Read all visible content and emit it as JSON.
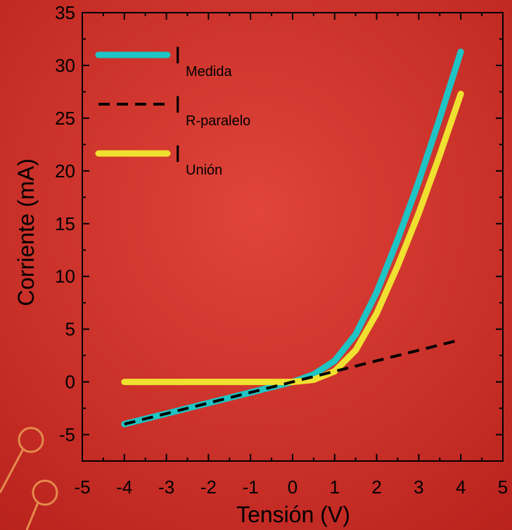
{
  "chart_data": {
    "type": "line",
    "x_label": "Tensión (V)",
    "y_label": "Corriente (mA)",
    "x": [
      -4,
      -3,
      -2,
      -1,
      0,
      0.5,
      1,
      1.5,
      2,
      2.5,
      3,
      3.5,
      4
    ],
    "series": [
      {
        "name": "I",
        "subscript": "Medida",
        "color": "#1fc4c4",
        "dash": false,
        "values": [
          -4,
          -3,
          -2,
          -1,
          0,
          0.7,
          2,
          4.5,
          8.5,
          13.5,
          19,
          25,
          31.3
        ]
      },
      {
        "name": "I",
        "subscript": "R-paralelo",
        "color": "#000000",
        "dash": true,
        "values": [
          -4,
          -3,
          -2,
          -1,
          0,
          0.5,
          1,
          1.5,
          2,
          2.5,
          3,
          3.5,
          4
        ]
      },
      {
        "name": "I",
        "subscript": "Unión",
        "color": "#f0e030",
        "dash": false,
        "values": [
          0,
          0,
          0,
          0,
          0,
          0.2,
          1,
          3,
          6.5,
          11,
          16,
          21.5,
          27.3
        ]
      }
    ],
    "xlim": [
      -5,
      5
    ],
    "xticks": [
      -5,
      -4,
      -3,
      -2,
      -1,
      0,
      1,
      2,
      3,
      4,
      5
    ],
    "ylim": [
      -7.5,
      35
    ],
    "yticks": [
      -5,
      0,
      5,
      10,
      15,
      20,
      25,
      30,
      35
    ],
    "legend": "upper-left",
    "grid": false
  }
}
